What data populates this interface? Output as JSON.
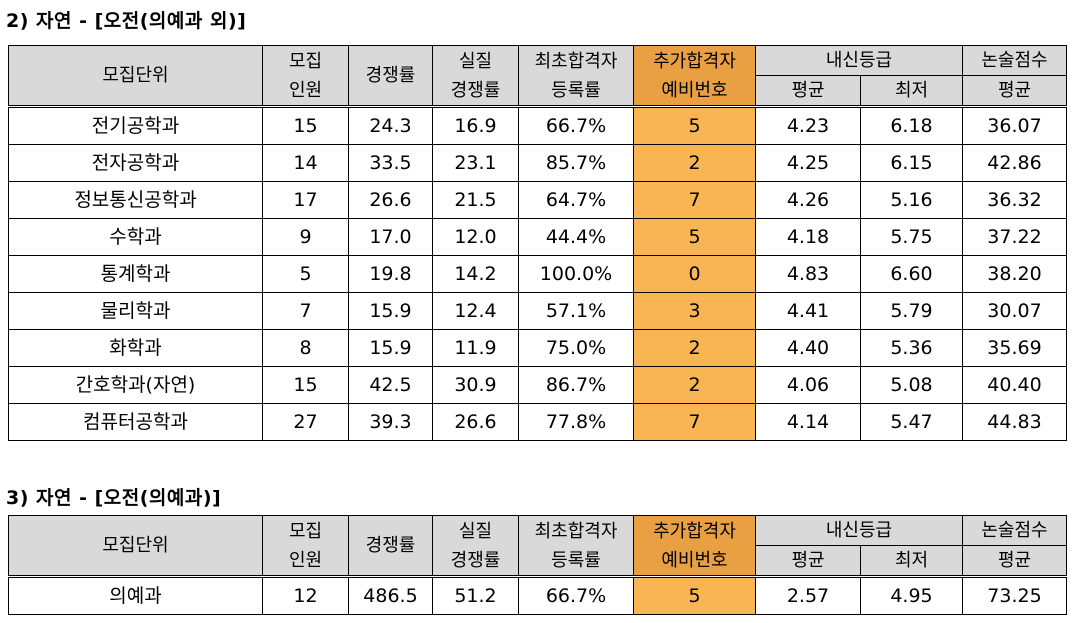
{
  "section2": {
    "title": "2) 자연 - [오전(의예과 외)]",
    "headers": {
      "unit": "모집단위",
      "quota_line1": "모집",
      "quota_line2": "인원",
      "competition": "경쟁률",
      "real_line1": "실질",
      "real_line2": "경쟁률",
      "first_line1": "최초합격자",
      "first_line2": "등록률",
      "waitlist_line1": "추가합격자",
      "waitlist_line2": "예비번호",
      "grade": "내신등급",
      "grade_avg": "평균",
      "grade_min": "최저",
      "essay": "논술점수",
      "essay_avg": "평균"
    },
    "rows": [
      {
        "unit": "전기공학과",
        "quota": "15",
        "competition": "24.3",
        "real": "16.9",
        "first": "66.7%",
        "waitlist": "5",
        "grade_avg": "4.23",
        "grade_min": "6.18",
        "essay_avg": "36.07"
      },
      {
        "unit": "전자공학과",
        "quota": "14",
        "competition": "33.5",
        "real": "23.1",
        "first": "85.7%",
        "waitlist": "2",
        "grade_avg": "4.25",
        "grade_min": "6.15",
        "essay_avg": "42.86"
      },
      {
        "unit": "정보통신공학과",
        "quota": "17",
        "competition": "26.6",
        "real": "21.5",
        "first": "64.7%",
        "waitlist": "7",
        "grade_avg": "4.26",
        "grade_min": "5.16",
        "essay_avg": "36.32"
      },
      {
        "unit": "수학과",
        "quota": "9",
        "competition": "17.0",
        "real": "12.0",
        "first": "44.4%",
        "waitlist": "5",
        "grade_avg": "4.18",
        "grade_min": "5.75",
        "essay_avg": "37.22"
      },
      {
        "unit": "통계학과",
        "quota": "5",
        "competition": "19.8",
        "real": "14.2",
        "first": "100.0%",
        "waitlist": "0",
        "grade_avg": "4.83",
        "grade_min": "6.60",
        "essay_avg": "38.20"
      },
      {
        "unit": "물리학과",
        "quota": "7",
        "competition": "15.9",
        "real": "12.4",
        "first": "57.1%",
        "waitlist": "3",
        "grade_avg": "4.41",
        "grade_min": "5.79",
        "essay_avg": "30.07"
      },
      {
        "unit": "화학과",
        "quota": "8",
        "competition": "15.9",
        "real": "11.9",
        "first": "75.0%",
        "waitlist": "2",
        "grade_avg": "4.40",
        "grade_min": "5.36",
        "essay_avg": "35.69"
      },
      {
        "unit": "간호학과(자연)",
        "quota": "15",
        "competition": "42.5",
        "real": "30.9",
        "first": "86.7%",
        "waitlist": "2",
        "grade_avg": "4.06",
        "grade_min": "5.08",
        "essay_avg": "40.40"
      },
      {
        "unit": "컴퓨터공학과",
        "quota": "27",
        "competition": "39.3",
        "real": "26.6",
        "first": "77.8%",
        "waitlist": "7",
        "grade_avg": "4.14",
        "grade_min": "5.47",
        "essay_avg": "44.83"
      }
    ]
  },
  "section3": {
    "title": "3) 자연 - [오전(의예과)]",
    "headers": {
      "unit": "모집단위",
      "quota_line1": "모집",
      "quota_line2": "인원",
      "competition": "경쟁률",
      "real_line1": "실질",
      "real_line2": "경쟁률",
      "first_line1": "최초합격자",
      "first_line2": "등록률",
      "waitlist_line1": "추가합격자",
      "waitlist_line2": "예비번호",
      "grade": "내신등급",
      "grade_avg": "평균",
      "grade_min": "최저",
      "essay": "논술점수",
      "essay_avg": "평균"
    },
    "rows": [
      {
        "unit": "의예과",
        "quota": "12",
        "competition": "486.5",
        "real": "51.2",
        "first": "66.7%",
        "waitlist": "5",
        "grade_avg": "2.57",
        "grade_min": "4.95",
        "essay_avg": "73.25"
      }
    ]
  },
  "colors": {
    "header_gray": "#d9d9d9",
    "header_orange": "#e8a043",
    "cell_orange": "#f9b553"
  }
}
